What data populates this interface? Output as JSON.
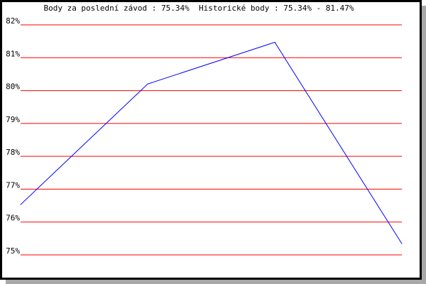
{
  "chart_data": {
    "type": "line",
    "title": "Body za poslední závod : 75.34%  Historické body : 75.34% - 81.47%",
    "xlabel": "",
    "ylabel": "",
    "ylim": [
      75,
      82
    ],
    "yticks": [
      "75%",
      "76%",
      "77%",
      "78%",
      "79%",
      "80%",
      "81%",
      "82%"
    ],
    "grid": true,
    "x": [
      1,
      2,
      3,
      4
    ],
    "series": [
      {
        "values": [
          76.53,
          80.2,
          81.47,
          75.34
        ],
        "color": "#0000ff"
      }
    ],
    "grid_color": "#ff0000"
  }
}
